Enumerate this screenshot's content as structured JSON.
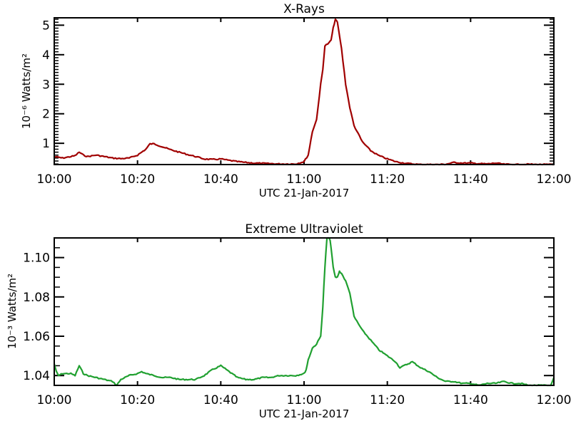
{
  "chart_data": [
    {
      "type": "line",
      "title": "X-Rays",
      "xlabel": "UTC 21-Jan-2017",
      "ylabel": "10⁻⁶ Watts/m²",
      "x_tick_labels": [
        "10:00",
        "10:20",
        "10:40",
        "11:00",
        "11:20",
        "11:40",
        "12:00"
      ],
      "y_tick_labels": [
        "1",
        "2",
        "3",
        "4",
        "5"
      ],
      "xlim_minutes": [
        0,
        120
      ],
      "ylim": [
        0.28,
        5.25
      ],
      "grid": false,
      "color": "#a00000",
      "series": [
        {
          "name": "X-Rays",
          "x_minutes": [
            0,
            2,
            4,
            5,
            6,
            7,
            8,
            10,
            12,
            14,
            16,
            18,
            20,
            22,
            23,
            24,
            26,
            28,
            30,
            32,
            34,
            36,
            38,
            40,
            42,
            44,
            46,
            48,
            50,
            52,
            54,
            56,
            58,
            60,
            61,
            62,
            63,
            64,
            64.5,
            65,
            66,
            66.5,
            67,
            67.5,
            68,
            69,
            70,
            71,
            72,
            74,
            76,
            78,
            80,
            82,
            84,
            86,
            88,
            90,
            92,
            94,
            96,
            98,
            100,
            102,
            104,
            106,
            108,
            110,
            112,
            114,
            116,
            118,
            120
          ],
          "values": [
            0.55,
            0.5,
            0.55,
            0.58,
            0.7,
            0.6,
            0.55,
            0.6,
            0.55,
            0.5,
            0.48,
            0.5,
            0.6,
            0.8,
            0.98,
            0.98,
            0.88,
            0.78,
            0.7,
            0.62,
            0.55,
            0.47,
            0.45,
            0.47,
            0.42,
            0.38,
            0.35,
            0.33,
            0.32,
            0.31,
            0.3,
            0.3,
            0.3,
            0.38,
            0.6,
            1.4,
            1.8,
            3.0,
            3.5,
            4.3,
            4.4,
            4.5,
            4.9,
            5.2,
            5.1,
            4.2,
            3.0,
            2.2,
            1.6,
            1.05,
            0.75,
            0.58,
            0.47,
            0.38,
            0.33,
            0.3,
            0.28,
            0.28,
            0.28,
            0.29,
            0.35,
            0.33,
            0.33,
            0.31,
            0.3,
            0.33,
            0.29,
            0.28,
            0.28,
            0.29,
            0.28,
            0.28,
            0.28
          ]
        }
      ]
    },
    {
      "type": "line",
      "title": "Extreme Ultraviolet",
      "xlabel": "UTC 21-Jan-2017",
      "ylabel": "10⁻³ Watts/m²",
      "x_tick_labels": [
        "10:00",
        "10:20",
        "10:40",
        "11:00",
        "11:20",
        "11:40",
        "12:00"
      ],
      "y_tick_labels": [
        "1.04",
        "1.06",
        "1.08",
        "1.10"
      ],
      "xlim_minutes": [
        0,
        120
      ],
      "ylim": [
        1.035,
        1.11
      ],
      "grid": false,
      "color": "#20a030",
      "series": [
        {
          "name": "Extreme Ultraviolet",
          "x_minutes": [
            0,
            0.5,
            1,
            2,
            4,
            5,
            6,
            7,
            8,
            10,
            12,
            14,
            15,
            16,
            18,
            20,
            21,
            22,
            24,
            26,
            28,
            30,
            32,
            34,
            36,
            38,
            39,
            40,
            42,
            44,
            46,
            48,
            50,
            52,
            54,
            56,
            58,
            60,
            60.5,
            61,
            62,
            63,
            64,
            64.5,
            65,
            65.5,
            66,
            66.5,
            67,
            67.5,
            68,
            68.5,
            69,
            70,
            71,
            72,
            74,
            76,
            78,
            80,
            82,
            83,
            84,
            86,
            88,
            90,
            92,
            94,
            96,
            98,
            100,
            102,
            104,
            106,
            108,
            110,
            112,
            114,
            116,
            118,
            119,
            119.5,
            120
          ],
          "values": [
            1.046,
            1.042,
            1.04,
            1.041,
            1.041,
            1.04,
            1.045,
            1.041,
            1.04,
            1.039,
            1.038,
            1.037,
            1.035,
            1.038,
            1.04,
            1.041,
            1.042,
            1.041,
            1.04,
            1.039,
            1.039,
            1.038,
            1.038,
            1.038,
            1.04,
            1.043,
            1.044,
            1.045,
            1.042,
            1.039,
            1.038,
            1.038,
            1.039,
            1.039,
            1.04,
            1.04,
            1.04,
            1.041,
            1.043,
            1.048,
            1.054,
            1.056,
            1.06,
            1.075,
            1.095,
            1.11,
            1.112,
            1.105,
            1.095,
            1.09,
            1.09,
            1.093,
            1.092,
            1.088,
            1.082,
            1.07,
            1.063,
            1.058,
            1.053,
            1.05,
            1.047,
            1.044,
            1.045,
            1.047,
            1.044,
            1.042,
            1.039,
            1.037,
            1.037,
            1.036,
            1.036,
            1.035,
            1.036,
            1.036,
            1.037,
            1.036,
            1.036,
            1.035,
            1.035,
            1.035,
            1.034,
            1.036,
            1.039
          ]
        }
      ]
    }
  ]
}
